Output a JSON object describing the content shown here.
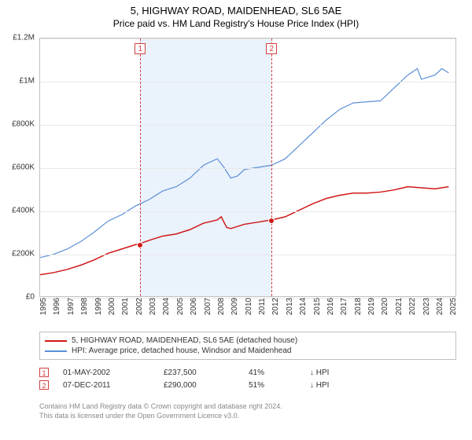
{
  "title": {
    "main": "5, HIGHWAY ROAD, MAIDENHEAD, SL6 5AE",
    "sub": "Price paid vs. HM Land Registry's House Price Index (HPI)"
  },
  "chart": {
    "type": "line",
    "background_color": "#ffffff",
    "border_color": "#c0c0c0",
    "grid_color": "#e8e8e8",
    "shade_color": "#eaf2fc",
    "shade_range": [
      2002.33,
      2011.93
    ],
    "marker_line_color": "#d04040",
    "x_years": [
      1995,
      1996,
      1997,
      1998,
      1999,
      2000,
      2001,
      2002,
      2003,
      2004,
      2005,
      2006,
      2007,
      2008,
      2009,
      2010,
      2011,
      2012,
      2013,
      2014,
      2015,
      2016,
      2017,
      2018,
      2019,
      2020,
      2021,
      2022,
      2023,
      2024,
      2025
    ],
    "xlim": [
      1995,
      2025.5
    ],
    "ylim": [
      0,
      1200000
    ],
    "ytick_step": 200000,
    "y_tick_labels": [
      "£0",
      "£200K",
      "£400K",
      "£600K",
      "£800K",
      "£1M",
      "£1.2M"
    ],
    "tick_fontsize": 10,
    "series": [
      {
        "name": "price_paid",
        "color": "#d01818",
        "width": 1.5,
        "data": [
          [
            1995,
            100000
          ],
          [
            1996,
            110000
          ],
          [
            1997,
            125000
          ],
          [
            1998,
            145000
          ],
          [
            1999,
            170000
          ],
          [
            2000,
            200000
          ],
          [
            2001,
            220000
          ],
          [
            2002,
            240000
          ],
          [
            2002.33,
            245000
          ],
          [
            2003,
            260000
          ],
          [
            2004,
            280000
          ],
          [
            2005,
            290000
          ],
          [
            2006,
            310000
          ],
          [
            2007,
            340000
          ],
          [
            2008,
            355000
          ],
          [
            2008.3,
            370000
          ],
          [
            2008.7,
            320000
          ],
          [
            2009,
            315000
          ],
          [
            2010,
            335000
          ],
          [
            2011,
            345000
          ],
          [
            2011.93,
            355000
          ],
          [
            2012,
            355000
          ],
          [
            2013,
            370000
          ],
          [
            2014,
            400000
          ],
          [
            2015,
            430000
          ],
          [
            2016,
            455000
          ],
          [
            2017,
            470000
          ],
          [
            2018,
            480000
          ],
          [
            2019,
            480000
          ],
          [
            2020,
            485000
          ],
          [
            2021,
            495000
          ],
          [
            2022,
            510000
          ],
          [
            2023,
            505000
          ],
          [
            2024,
            500000
          ],
          [
            2025,
            510000
          ]
        ]
      },
      {
        "name": "hpi",
        "color": "#5b8fd6",
        "width": 1.2,
        "data": [
          [
            1995,
            180000
          ],
          [
            1996,
            195000
          ],
          [
            1997,
            220000
          ],
          [
            1998,
            255000
          ],
          [
            1999,
            300000
          ],
          [
            2000,
            350000
          ],
          [
            2001,
            380000
          ],
          [
            2002,
            420000
          ],
          [
            2003,
            450000
          ],
          [
            2004,
            490000
          ],
          [
            2005,
            510000
          ],
          [
            2006,
            550000
          ],
          [
            2007,
            610000
          ],
          [
            2008,
            640000
          ],
          [
            2008.5,
            600000
          ],
          [
            2009,
            550000
          ],
          [
            2009.5,
            560000
          ],
          [
            2010,
            590000
          ],
          [
            2011,
            600000
          ],
          [
            2012,
            610000
          ],
          [
            2013,
            640000
          ],
          [
            2014,
            700000
          ],
          [
            2015,
            760000
          ],
          [
            2016,
            820000
          ],
          [
            2017,
            870000
          ],
          [
            2018,
            900000
          ],
          [
            2019,
            905000
          ],
          [
            2020,
            910000
          ],
          [
            2021,
            970000
          ],
          [
            2022,
            1030000
          ],
          [
            2022.7,
            1060000
          ],
          [
            2023,
            1010000
          ],
          [
            2024,
            1030000
          ],
          [
            2024.5,
            1060000
          ],
          [
            2025,
            1040000
          ]
        ]
      }
    ],
    "sale_points": [
      {
        "x": 2002.33,
        "y": 245000
      },
      {
        "x": 2011.93,
        "y": 355000
      }
    ],
    "markers": [
      {
        "label": "1",
        "x": 2002.33
      },
      {
        "label": "2",
        "x": 2011.93
      }
    ]
  },
  "legend": {
    "items": [
      {
        "color": "#d01818",
        "label": "5, HIGHWAY ROAD, MAIDENHEAD, SL6 5AE (detached house)"
      },
      {
        "color": "#5b8fd6",
        "label": "HPI: Average price, detached house, Windsor and Maidenhead"
      }
    ]
  },
  "transactions": [
    {
      "marker": "1",
      "date": "01-MAY-2002",
      "price": "£237,500",
      "pct": "41%",
      "arrow": "↓",
      "vs": "HPI"
    },
    {
      "marker": "2",
      "date": "07-DEC-2011",
      "price": "£290,000",
      "pct": "51%",
      "arrow": "↓",
      "vs": "HPI"
    }
  ],
  "footer": {
    "line1": "Contains HM Land Registry data © Crown copyright and database right 2024.",
    "line2": "This data is licensed under the Open Government Licence v3.0."
  }
}
